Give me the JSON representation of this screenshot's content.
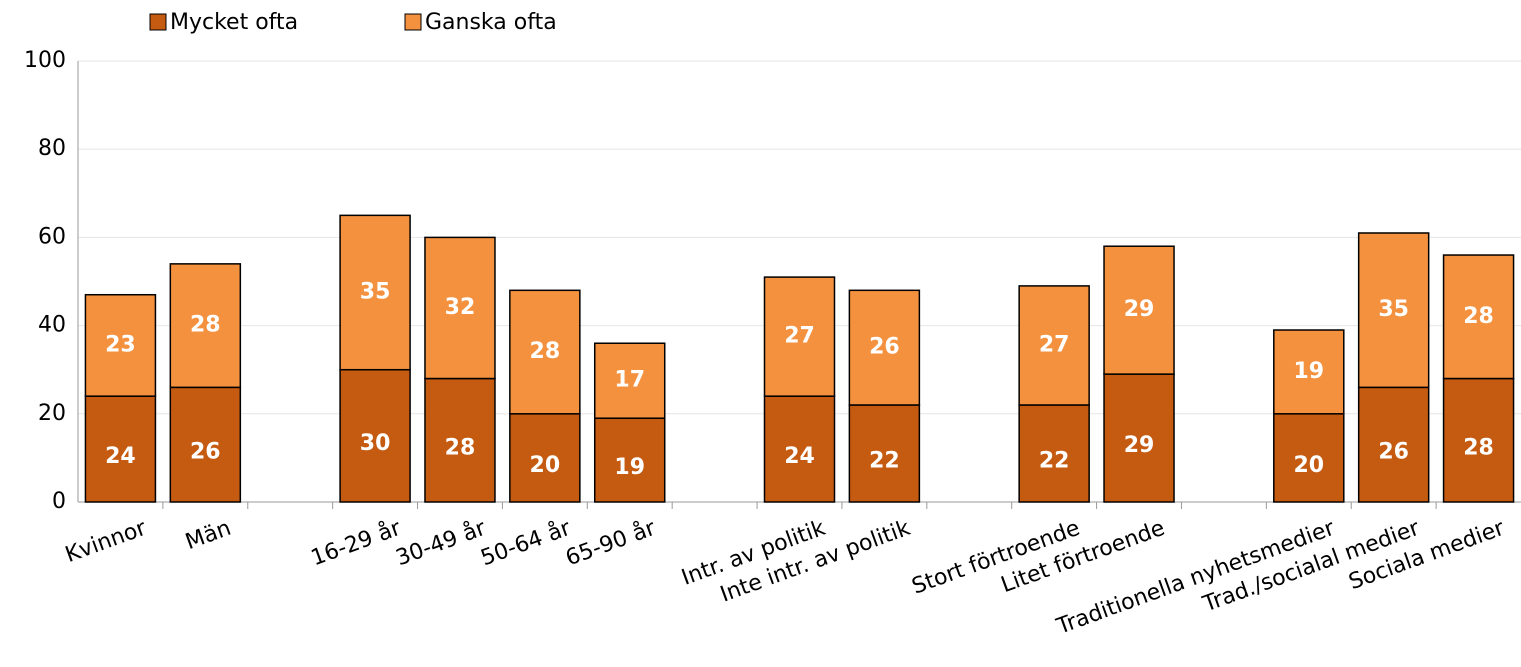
{
  "chart_data": {
    "type": "stacked_bar",
    "categories": [
      "Kvinnor",
      "Män",
      null,
      "16-29 år",
      "30-49 år",
      "50-64 år",
      "65-90 år",
      null,
      "Intr. av politik",
      "Inte intr. av politik",
      null,
      "Stort förtroende",
      "Litet förtroende",
      null,
      "Traditionella nyhetsmedier",
      "Trad./socialal medier",
      "Sociala medier"
    ],
    "series": [
      {
        "name": "Mycket ofta",
        "color": "#c55a11",
        "values": [
          24,
          26,
          null,
          30,
          28,
          20,
          19,
          null,
          24,
          22,
          null,
          22,
          29,
          null,
          20,
          26,
          28
        ]
      },
      {
        "name": "Ganska ofta",
        "color": "#f4913f",
        "values": [
          23,
          28,
          null,
          35,
          32,
          28,
          17,
          null,
          27,
          26,
          null,
          27,
          29,
          null,
          19,
          35,
          28
        ]
      }
    ],
    "ylim": [
      0,
      100
    ],
    "yticks": [
      0,
      20,
      40,
      60,
      80,
      100
    ],
    "grid": true,
    "legend": "top"
  }
}
